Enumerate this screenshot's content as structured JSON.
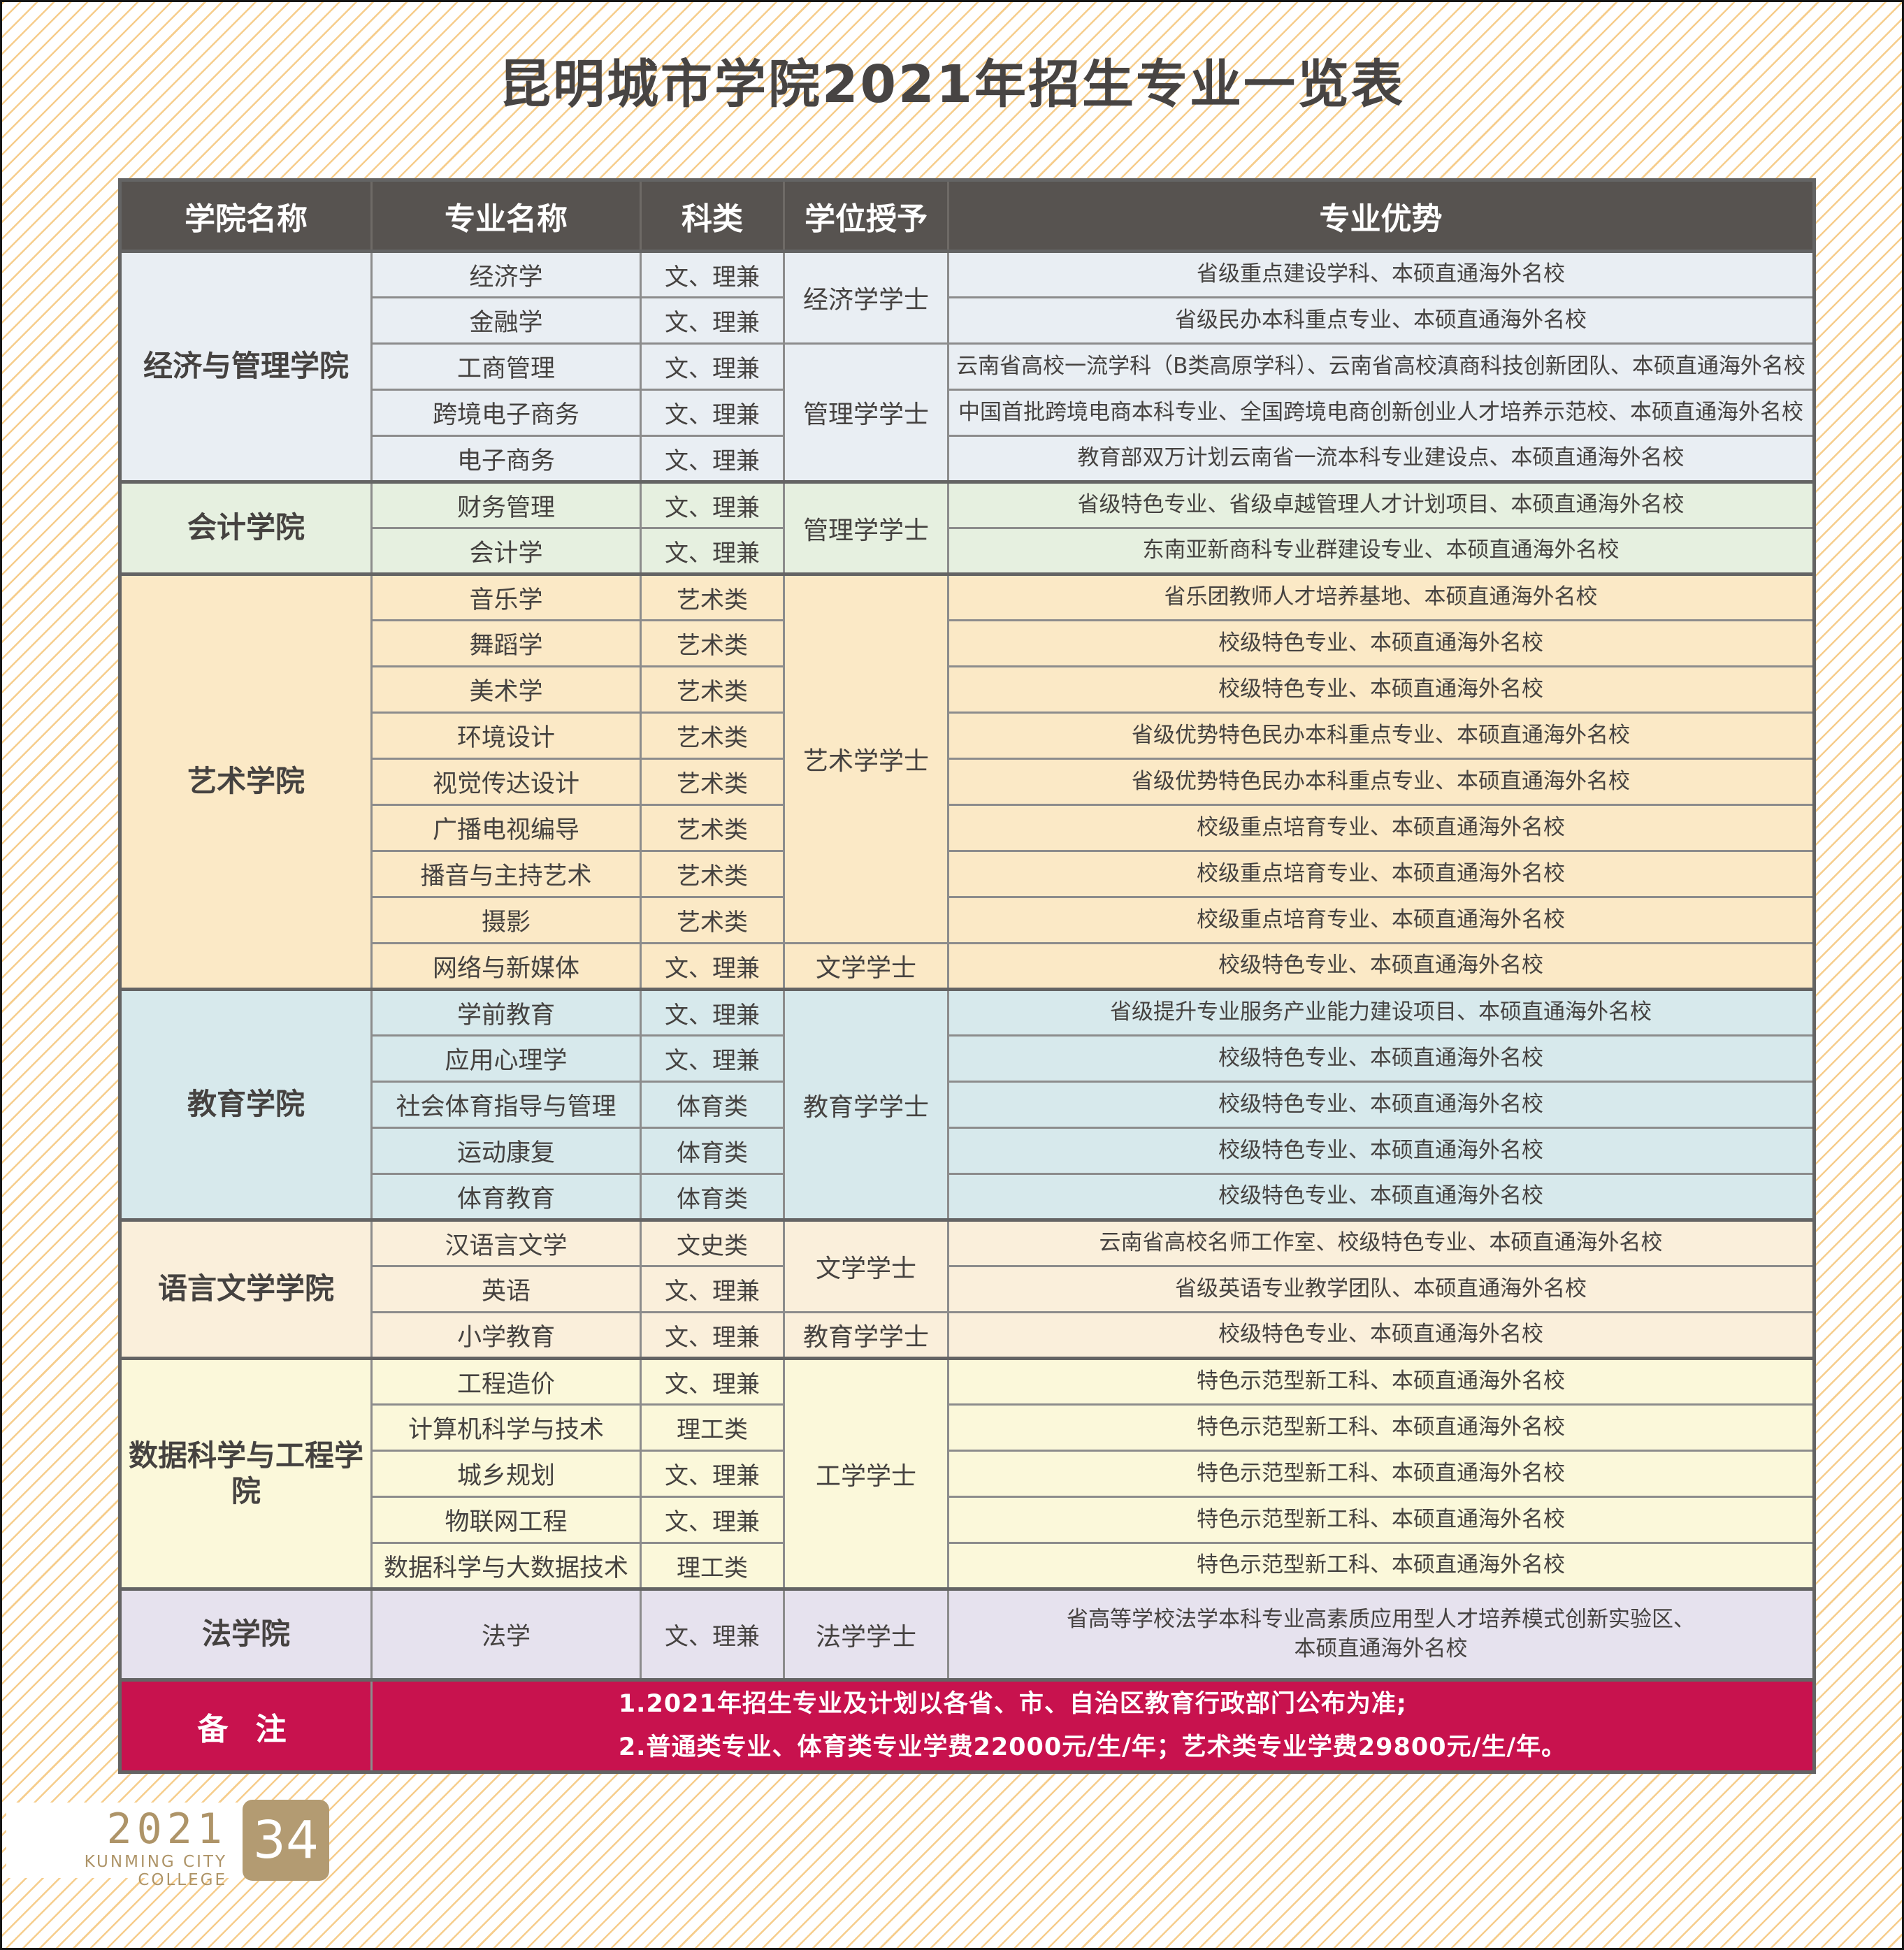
{
  "title": "昆明城市学院2021年招生专业一览表",
  "table": {
    "columns": [
      "学院名称",
      "专业名称",
      "科类",
      "学位授予",
      "专业优势"
    ],
    "header_bg": "#575350",
    "border_color": "#8C8C8C",
    "sections": [
      {
        "college": "经济与管理学院",
        "color": "#E9EEF3",
        "rows": [
          {
            "major": "经济学",
            "category": "文、理兼",
            "degree": "经济学学士",
            "degree_span": 2,
            "advantage": "省级重点建设学科、本硕直通海外名校"
          },
          {
            "major": "金融学",
            "category": "文、理兼",
            "advantage": "省级民办本科重点专业、本硕直通海外名校"
          },
          {
            "major": "工商管理",
            "category": "文、理兼",
            "degree": "管理学学士",
            "degree_span": 3,
            "advantage": "云南省高校一流学科（B类高原学科）、云南省高校滇商科技创新团队、本硕直通海外名校"
          },
          {
            "major": "跨境电子商务",
            "category": "文、理兼",
            "advantage": "中国首批跨境电商本科专业、全国跨境电商创新创业人才培养示范校、本硕直通海外名校"
          },
          {
            "major": "电子商务",
            "category": "文、理兼",
            "advantage": "教育部双万计划云南省一流本科专业建设点、本硕直通海外名校"
          }
        ]
      },
      {
        "college": "会计学院",
        "color": "#E6F0E0",
        "rows": [
          {
            "major": "财务管理",
            "category": "文、理兼",
            "degree": "管理学学士",
            "degree_span": 2,
            "advantage": "省级特色专业、省级卓越管理人才计划项目、本硕直通海外名校"
          },
          {
            "major": "会计学",
            "category": "文、理兼",
            "advantage": "东南亚新商科专业群建设专业、本硕直通海外名校"
          }
        ]
      },
      {
        "college": "艺术学院",
        "color": "#FBE9C6",
        "rows": [
          {
            "major": "音乐学",
            "category": "艺术类",
            "degree": "艺术学学士",
            "degree_span": 8,
            "advantage": "省乐团教师人才培养基地、本硕直通海外名校"
          },
          {
            "major": "舞蹈学",
            "category": "艺术类",
            "advantage": "校级特色专业、本硕直通海外名校"
          },
          {
            "major": "美术学",
            "category": "艺术类",
            "advantage": "校级特色专业、本硕直通海外名校"
          },
          {
            "major": "环境设计",
            "category": "艺术类",
            "advantage": "省级优势特色民办本科重点专业、本硕直通海外名校"
          },
          {
            "major": "视觉传达设计",
            "category": "艺术类",
            "advantage": "省级优势特色民办本科重点专业、本硕直通海外名校"
          },
          {
            "major": "广播电视编导",
            "category": "艺术类",
            "advantage": "校级重点培育专业、本硕直通海外名校"
          },
          {
            "major": "播音与主持艺术",
            "category": "艺术类",
            "advantage": "校级重点培育专业、本硕直通海外名校"
          },
          {
            "major": "摄影",
            "category": "艺术类",
            "advantage": "校级重点培育专业、本硕直通海外名校"
          },
          {
            "major": "网络与新媒体",
            "category": "文、理兼",
            "degree": "文学学士",
            "degree_span": 1,
            "advantage": "校级特色专业、本硕直通海外名校"
          }
        ]
      },
      {
        "college": "教育学院",
        "color": "#D7E9EC",
        "rows": [
          {
            "major": "学前教育",
            "category": "文、理兼",
            "degree": "教育学学士",
            "degree_span": 5,
            "advantage": "省级提升专业服务产业能力建设项目、本硕直通海外名校"
          },
          {
            "major": "应用心理学",
            "category": "文、理兼",
            "advantage": "校级特色专业、本硕直通海外名校"
          },
          {
            "major": "社会体育指导与管理",
            "category": "体育类",
            "advantage": "校级特色专业、本硕直通海外名校"
          },
          {
            "major": "运动康复",
            "category": "体育类",
            "advantage": "校级特色专业、本硕直通海外名校"
          },
          {
            "major": "体育教育",
            "category": "体育类",
            "advantage": "校级特色专业、本硕直通海外名校"
          }
        ]
      },
      {
        "college": "语言文学学院",
        "color": "#FAEFDB",
        "rows": [
          {
            "major": "汉语言文学",
            "category": "文史类",
            "degree": "文学学士",
            "degree_span": 2,
            "advantage": "云南省高校名师工作室、校级特色专业、本硕直通海外名校"
          },
          {
            "major": "英语",
            "category": "文、理兼",
            "advantage": "省级英语专业教学团队、本硕直通海外名校"
          },
          {
            "major": "小学教育",
            "category": "文、理兼",
            "degree": "教育学学士",
            "degree_span": 1,
            "advantage": "校级特色专业、本硕直通海外名校"
          }
        ]
      },
      {
        "college": "数据科学与工程学院",
        "color": "#FBF8DA",
        "rows": [
          {
            "major": "工程造价",
            "category": "文、理兼",
            "degree": "工学学士",
            "degree_span": 5,
            "advantage": "特色示范型新工科、本硕直通海外名校"
          },
          {
            "major": "计算机科学与技术",
            "category": "理工类",
            "advantage": "特色示范型新工科、本硕直通海外名校"
          },
          {
            "major": "城乡规划",
            "category": "文、理兼",
            "advantage": "特色示范型新工科、本硕直通海外名校"
          },
          {
            "major": "物联网工程",
            "category": "文、理兼",
            "advantage": "特色示范型新工科、本硕直通海外名校"
          },
          {
            "major": "数据科学与大数据技术",
            "category": "理工类",
            "advantage": "特色示范型新工科、本硕直通海外名校"
          }
        ]
      },
      {
        "college": "法学院",
        "color": "#E6E2EE",
        "rows": [
          {
            "major": "法学",
            "category": "文、理兼",
            "degree": "法学学士",
            "degree_span": 1,
            "advantage": [
              "省高等学校法学本科专业高素质应用型人才培养模式创新实验区、",
              "本硕直通海外名校"
            ]
          }
        ]
      }
    ],
    "remark": {
      "label": "备 注",
      "bg": "#C8124E",
      "lines": [
        "1.2021年招生专业及计划以各省、市、自治区教育行政部门公布为准;",
        "2.普通类专业、体育类专业学费22000元/生/年；艺术类专业学费29800元/生/年。"
      ]
    }
  },
  "footer": {
    "year": "2021",
    "college_en": "KUNMING CITY COLLEGE",
    "page": "34",
    "accent_color": "#B39B72"
  }
}
